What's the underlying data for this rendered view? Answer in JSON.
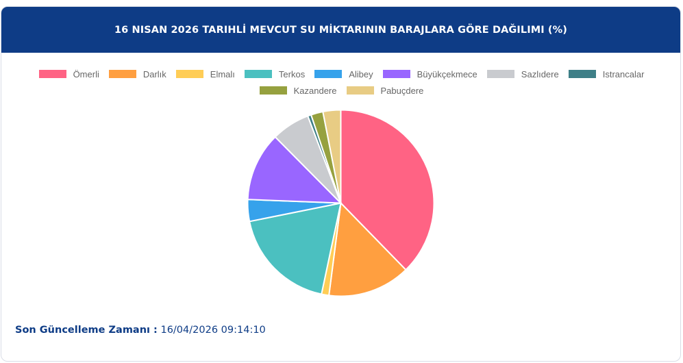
{
  "header": {
    "title": "16 NISAN 2026 TARIHLİ MEVCUT SU MİKTARININ BARAJLARA GÖRE DAĞILIMI (%)"
  },
  "footer": {
    "label": "Son Güncelleme Zamanı :",
    "value": "16/04/2026 09:14:10"
  },
  "chart_data": {
    "type": "pie",
    "title": "16 NISAN 2026 TARIHLİ MEVCUT SU MİKTARININ BARAJLARA GÖRE DAĞILIMI (%)",
    "legend_position": "top",
    "categories": [
      "Ömerli",
      "Darlık",
      "Elmalı",
      "Terkos",
      "Alibey",
      "Büyükçekmece",
      "Sazlıdere",
      "Istrancalar",
      "Kazandere",
      "Pabuçdere"
    ],
    "values": [
      37.9,
      14.4,
      1.3,
      18.6,
      3.8,
      12.0,
      6.7,
      0.6,
      2.1,
      3.1
    ],
    "colors": [
      "#ff6384",
      "#ff9f40",
      "#ffcd56",
      "#4bc0c0",
      "#36a2eb",
      "#9966ff",
      "#c9cbcf",
      "#3e7f87",
      "#96a13f",
      "#e8cc84"
    ]
  }
}
